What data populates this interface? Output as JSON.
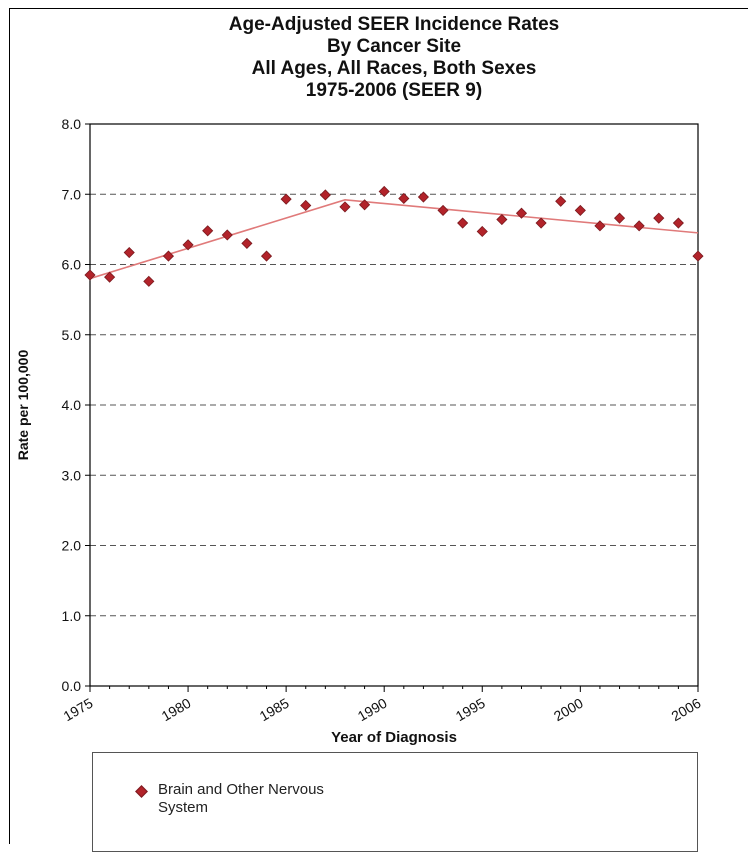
{
  "chart_data": {
    "type": "scatter",
    "title_lines": [
      "Age-Adjusted SEER Incidence Rates",
      "By Cancer Site",
      "All Ages, All Races, Both Sexes",
      "1975-2006 (SEER 9)"
    ],
    "xlabel": "Year of Diagnosis",
    "ylabel": "Rate per 100,000",
    "xlim": [
      1975,
      2006
    ],
    "ylim": [
      0,
      8
    ],
    "x_ticks": [
      1975,
      1980,
      1985,
      1990,
      1995,
      2000,
      2006
    ],
    "y_ticks": [
      "0.0",
      "1.0",
      "2.0",
      "3.0",
      "4.0",
      "5.0",
      "6.0",
      "7.0",
      "8.0"
    ],
    "grid": "horizontal dashed",
    "series": [
      {
        "name": "Brain and Other Nervous System",
        "color": "#b2232a",
        "x": [
          1975,
          1976,
          1977,
          1978,
          1979,
          1980,
          1981,
          1982,
          1983,
          1984,
          1985,
          1986,
          1987,
          1988,
          1989,
          1990,
          1991,
          1992,
          1993,
          1994,
          1995,
          1996,
          1997,
          1998,
          1999,
          2000,
          2001,
          2002,
          2003,
          2004,
          2005,
          2006
        ],
        "y": [
          5.85,
          5.82,
          6.17,
          5.76,
          6.12,
          6.28,
          6.48,
          6.42,
          6.3,
          6.12,
          6.93,
          6.84,
          6.99,
          6.82,
          6.85,
          7.04,
          6.94,
          6.96,
          6.77,
          6.59,
          6.47,
          6.64,
          6.73,
          6.59,
          6.9,
          6.77,
          6.55,
          6.66,
          6.55,
          6.66,
          6.59,
          6.12
        ]
      }
    ],
    "trend": {
      "color": "#e07a7a",
      "x": [
        1975,
        1988,
        2006
      ],
      "y": [
        5.8,
        6.92,
        6.45
      ]
    }
  },
  "legend": {
    "label_line1": "Brain and Other Nervous",
    "label_line2": "System"
  }
}
